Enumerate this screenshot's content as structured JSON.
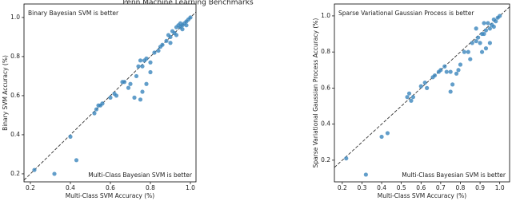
{
  "chart_data": [
    {
      "type": "scatter",
      "title": "Penn Machine Learning Benchmarks",
      "xlabel": "Multi-Class SVM Accuracy (%)",
      "ylabel": "Binary SVM Accuracy (%)",
      "annotations": [
        "Binary Bayesian SVM is better",
        "Multi-Class Bayesian SVM is better"
      ],
      "xlim": [
        0.168,
        1.028
      ],
      "ylim": [
        0.159,
        1.069
      ],
      "xticks": [
        0.2,
        0.4,
        0.6,
        0.8,
        {
          "value": 1,
          "label": "1.0"
        }
      ],
      "yticks": [
        0.2,
        0.4,
        0.6,
        0.8,
        {
          "value": 1,
          "label": "1.0"
        }
      ],
      "series": [
        {
          "color": "#3b86bd",
          "x": [
            0.22,
            0.32,
            0.4,
            0.43,
            0.52,
            0.53,
            0.54,
            0.55,
            0.56,
            0.6,
            0.62,
            0.63,
            0.66,
            0.67,
            0.69,
            0.7,
            0.72,
            0.73,
            0.74,
            0.75,
            0.76,
            0.77,
            0.78,
            0.75,
            0.76,
            0.78,
            0.8,
            0.82,
            0.84,
            0.85,
            0.86,
            0.88,
            0.89,
            0.9,
            0.9,
            0.91,
            0.92,
            0.93,
            0.94,
            0.95,
            0.95,
            0.96,
            0.97,
            0.98,
            0.98,
            0.99,
            1.0,
            0.96,
            0.93,
            0.8
          ],
          "values": [
            0.22,
            0.2,
            0.39,
            0.27,
            0.51,
            0.53,
            0.55,
            0.55,
            0.56,
            0.59,
            0.61,
            0.6,
            0.67,
            0.67,
            0.64,
            0.66,
            0.59,
            0.7,
            0.75,
            0.78,
            0.75,
            0.78,
            0.79,
            0.58,
            0.62,
            0.66,
            0.72,
            0.82,
            0.83,
            0.85,
            0.86,
            0.88,
            0.91,
            0.9,
            0.87,
            0.93,
            0.92,
            0.95,
            0.96,
            0.95,
            0.97,
            0.96,
            0.97,
            0.98,
            0.96,
            0.99,
            1.0,
            0.94,
            0.91,
            0.77
          ]
        }
      ]
    },
    {
      "type": "scatter",
      "xlabel": "Multi-Class SVM Accuracy (%)",
      "ylabel": "Sparse Variational Gaussian Process Accuracy (%)",
      "annotations": [
        "Sparse Variational Gaussian Process is better",
        "Multi-Class Bayesian SVM is better"
      ],
      "xlim": [
        0.16,
        1.05
      ],
      "ylim": [
        0.08,
        1.066
      ],
      "xticks": [
        0.2,
        0.3,
        0.4,
        0.5,
        0.6,
        0.7,
        0.8,
        0.9,
        {
          "value": 1,
          "label": "1.0"
        }
      ],
      "yticks": [
        0.2,
        0.4,
        0.6,
        0.8,
        {
          "value": 1,
          "label": "1.0"
        }
      ],
      "series": [
        {
          "color": "#3b86bd",
          "x": [
            0.22,
            0.32,
            0.4,
            0.43,
            0.53,
            0.54,
            0.55,
            0.56,
            0.6,
            0.62,
            0.63,
            0.66,
            0.67,
            0.69,
            0.7,
            0.72,
            0.73,
            0.75,
            0.76,
            0.78,
            0.8,
            0.82,
            0.84,
            0.86,
            0.88,
            0.89,
            0.9,
            0.91,
            0.92,
            0.93,
            0.94,
            0.95,
            0.96,
            0.97,
            0.98,
            0.99,
            1.0,
            0.95,
            0.93,
            0.91,
            0.97,
            0.75,
            0.79,
            0.85,
            0.88,
            0.92
          ],
          "values": [
            0.21,
            0.12,
            0.33,
            0.35,
            0.55,
            0.57,
            0.53,
            0.55,
            0.61,
            0.63,
            0.6,
            0.66,
            0.67,
            0.69,
            0.7,
            0.72,
            0.69,
            0.58,
            0.62,
            0.68,
            0.73,
            0.8,
            0.8,
            0.85,
            0.86,
            0.88,
            0.85,
            0.9,
            0.9,
            0.92,
            0.96,
            0.93,
            0.95,
            0.94,
            0.97,
            0.99,
            1.0,
            0.85,
            0.82,
            0.8,
            0.98,
            0.69,
            0.7,
            0.76,
            0.93,
            0.96
          ]
        }
      ]
    }
  ]
}
